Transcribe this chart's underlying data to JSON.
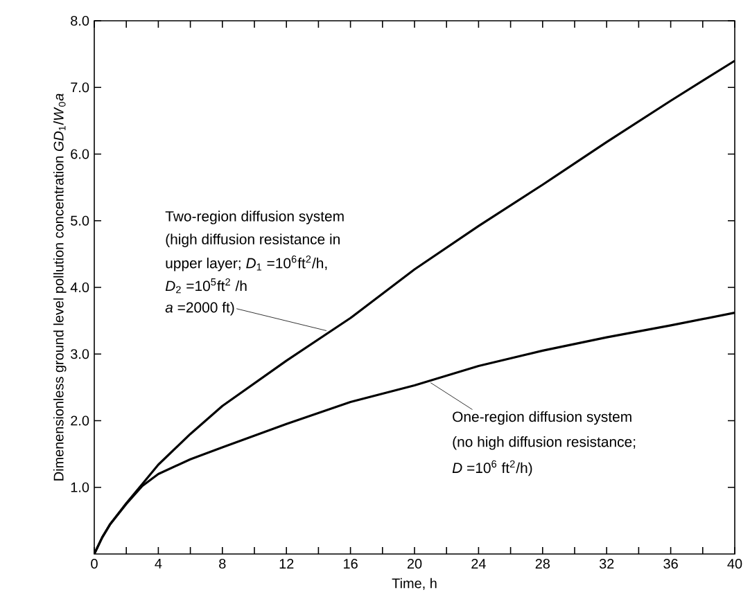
{
  "chart_data": {
    "type": "line",
    "xlabel": "Time,    h",
    "ylabel": "Dimenensionless ground level pollution concentration *GD*$_{1}$/*W*$_{0}$*a*",
    "x": [
      0,
      0.5,
      1,
      2,
      3,
      4,
      6,
      8,
      12,
      16,
      20,
      24,
      28,
      32,
      36,
      40
    ],
    "series": [
      {
        "color": "#000000",
        "values": [
          0,
          0.25,
          0.45,
          0.76,
          1.05,
          1.34,
          1.8,
          2.22,
          2.9,
          3.54,
          4.27,
          4.92,
          5.54,
          6.18,
          6.8,
          7.4
        ]
      },
      {
        "color": "#000000",
        "values": [
          0,
          0.25,
          0.45,
          0.75,
          1.02,
          1.2,
          1.42,
          1.6,
          1.95,
          2.28,
          2.53,
          2.82,
          3.05,
          3.25,
          3.43,
          3.62
        ]
      }
    ],
    "annotations": [
      "Two-region diffusion system",
      "(high diffusion resistance in",
      "upper layer; *D*$_{1}$ =10$^{6}$ft$^{2}$/h,",
      "*D*$_{2}$ =10$^{5}$ft$^{2}$ /h",
      {
        "text": "*a* =2000 ft)",
        "x": 14.5,
        "y": 3.35
      },
      {
        "text": "One-region diffusion system",
        "x": 21,
        "y": 2.57
      },
      "(no high diffusion resistance;",
      "*D* =10$^{6}$ ft$^{2}$/h)"
    ],
    "xlim": [
      0,
      40
    ],
    "ylim": [
      0,
      8
    ],
    "xticks": [
      0,
      {
        "value": 2,
        "label": null
      },
      4,
      {
        "value": 6,
        "label": null
      },
      8,
      {
        "value": 10,
        "label": null
      },
      12,
      {
        "value": 14,
        "label": null
      },
      16,
      {
        "value": 18,
        "label": null
      },
      20,
      {
        "value": 22,
        "label": null
      },
      24,
      {
        "value": 26,
        "label": null
      },
      28,
      {
        "value": 30,
        "label": null
      },
      32,
      {
        "value": 34,
        "label": null
      },
      36,
      {
        "value": 38,
        "label": null
      },
      40
    ],
    "yticks": [
      {
        "value": 1,
        "label": "1.0"
      },
      {
        "value": 2,
        "label": "2.0"
      },
      {
        "value": 3,
        "label": "3.0"
      },
      {
        "value": 4,
        "label": "4.0"
      },
      {
        "value": 5,
        "label": "5.0"
      },
      {
        "value": 6,
        "label": "6.0"
      },
      {
        "value": 7,
        "label": "7.0"
      },
      {
        "value": 8,
        "label": "8.0"
      }
    ],
    "grid": false,
    "marker": "none",
    "line_style": "solid"
  }
}
